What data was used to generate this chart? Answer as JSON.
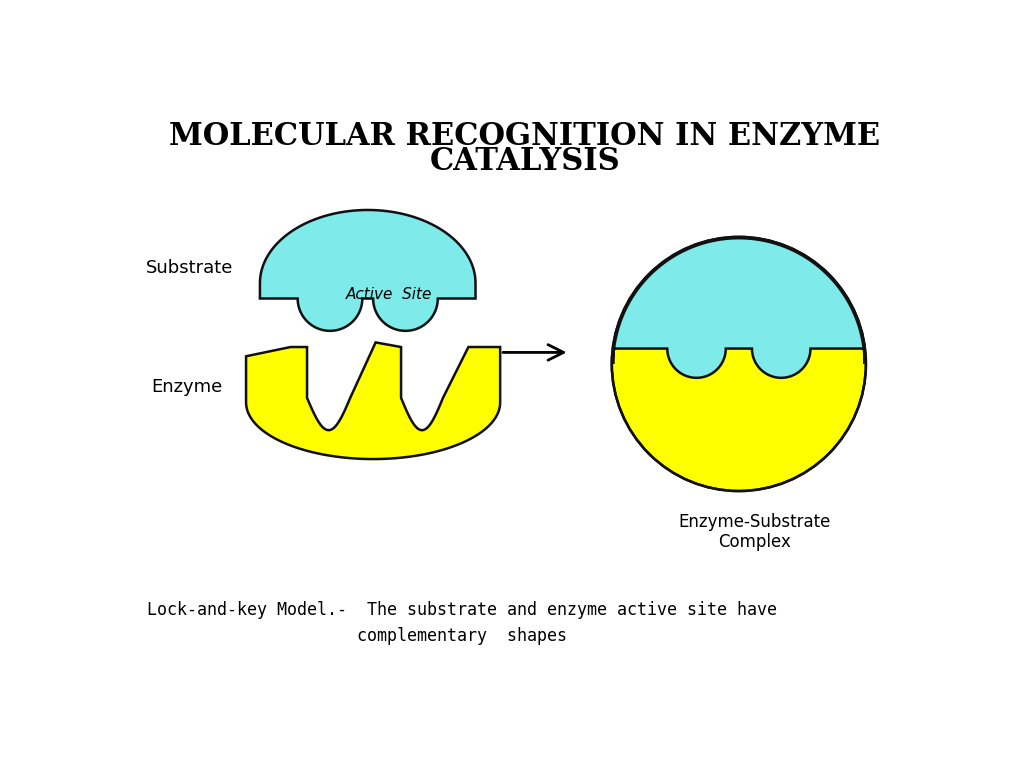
{
  "title_line1": "MOLECULAR RECOGNITION IN ENZYME",
  "title_line2": "CATALYSIS",
  "title_fontsize": 22,
  "title_fontweight": "bold",
  "substrate_color": "#7EEAEA",
  "enzyme_color": "#FFFF00",
  "outline_color": "#111111",
  "background_color": "#FFFFFF",
  "label_substrate": "Substrate",
  "label_enzyme": "Enzyme",
  "label_active_site": "Active  Site",
  "label_complex": "Enzyme-Substrate\nComplex",
  "bottom_text_line1": "Lock-and-key Model.-  The substrate and enzyme active site have",
  "bottom_text_line2": "complementary  shapes"
}
